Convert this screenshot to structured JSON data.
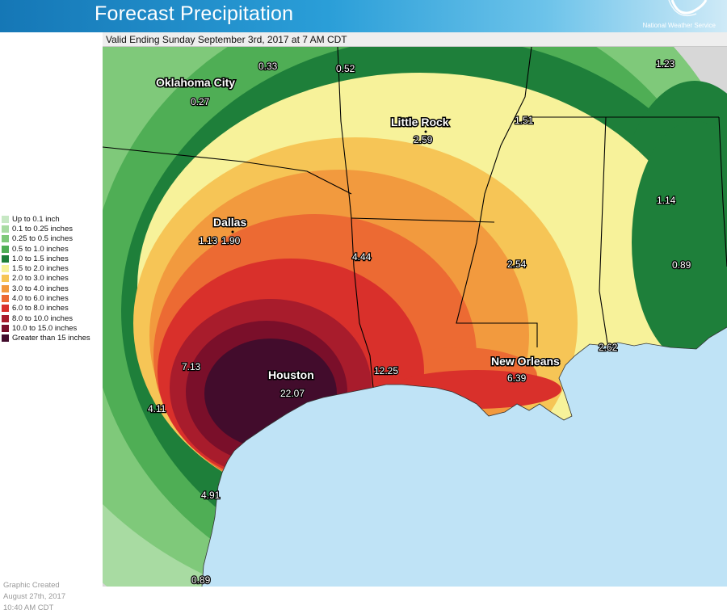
{
  "header": {
    "title": "Forecast Precipitation",
    "agency": "National Weather Service",
    "valid": "Valid Ending Sunday September 3rd, 2017 at 7 AM CDT"
  },
  "legend": [
    {
      "label": "Up to 0.1 inch",
      "color": "#c7e8c4"
    },
    {
      "label": "0.1 to 0.25 inches",
      "color": "#a8dba2"
    },
    {
      "label": "0.25 to 0.5 inches",
      "color": "#7fc97a"
    },
    {
      "label": "0.5 to 1.0 inches",
      "color": "#4fae55"
    },
    {
      "label": "1.0 to 1.5 inches",
      "color": "#1e7f3a"
    },
    {
      "label": "1.5 to 2.0 inches",
      "color": "#f7f29a"
    },
    {
      "label": "2.0 to 3.0 inches",
      "color": "#f6c556"
    },
    {
      "label": "3.0 to 4.0 inches",
      "color": "#f29a3e"
    },
    {
      "label": "4.0 to 6.0 inches",
      "color": "#ec6a33"
    },
    {
      "label": "6.0 to 8.0 inches",
      "color": "#d9302b"
    },
    {
      "label": "8.0 to 10.0 inches",
      "color": "#a81c2c"
    },
    {
      "label": "10.0 to 15.0 inches",
      "color": "#7a0f2a"
    },
    {
      "label": "Greater than 15 inches",
      "color": "#420c2c"
    }
  ],
  "created": {
    "line1": "Graphic Created",
    "line2": "August 27th, 2017",
    "line3": "10:40 AM CDT"
  },
  "map": {
    "colors": {
      "gulf": "#bfe3f6",
      "mexico": "#d7d7d7",
      "green_light": "#a8dba2",
      "green_mid": "#7fc97a",
      "green": "#4fae55",
      "green_dark": "#1e7f3a",
      "yellow_light": "#f7f29a",
      "yellow": "#f6c556",
      "orange": "#f29a3e",
      "orange_red": "#ec6a33",
      "red": "#d9302b",
      "crimson": "#a81c2c",
      "maroon": "#7a0f2a",
      "plum": "#420c2c"
    },
    "cities": {
      "oklahoma_city": "Oklahoma City",
      "dallas": "Dallas",
      "little_rock": "Little Rock",
      "houston": "Houston",
      "new_orleans": "New Orleans"
    },
    "amounts": {
      "okc": "0.27",
      "n_ok": "0.33",
      "ne_ok": "0.52",
      "north_ms": "1.23",
      "n_ms": "1.51",
      "al": "1.14",
      "ga": "0.89",
      "little_rock": "2.59",
      "dallas_a": "1.13",
      "dallas_b": "1.90",
      "north_la": "4.44",
      "s_ms": "2.54",
      "c_tx": "7.13",
      "w_tx": "4.11",
      "houston": "22.07",
      "beaumont": "12.25",
      "new_orleans": "6.39",
      "mobile": "2.62",
      "corpus": "4.91",
      "s_tx": "0.89"
    }
  }
}
